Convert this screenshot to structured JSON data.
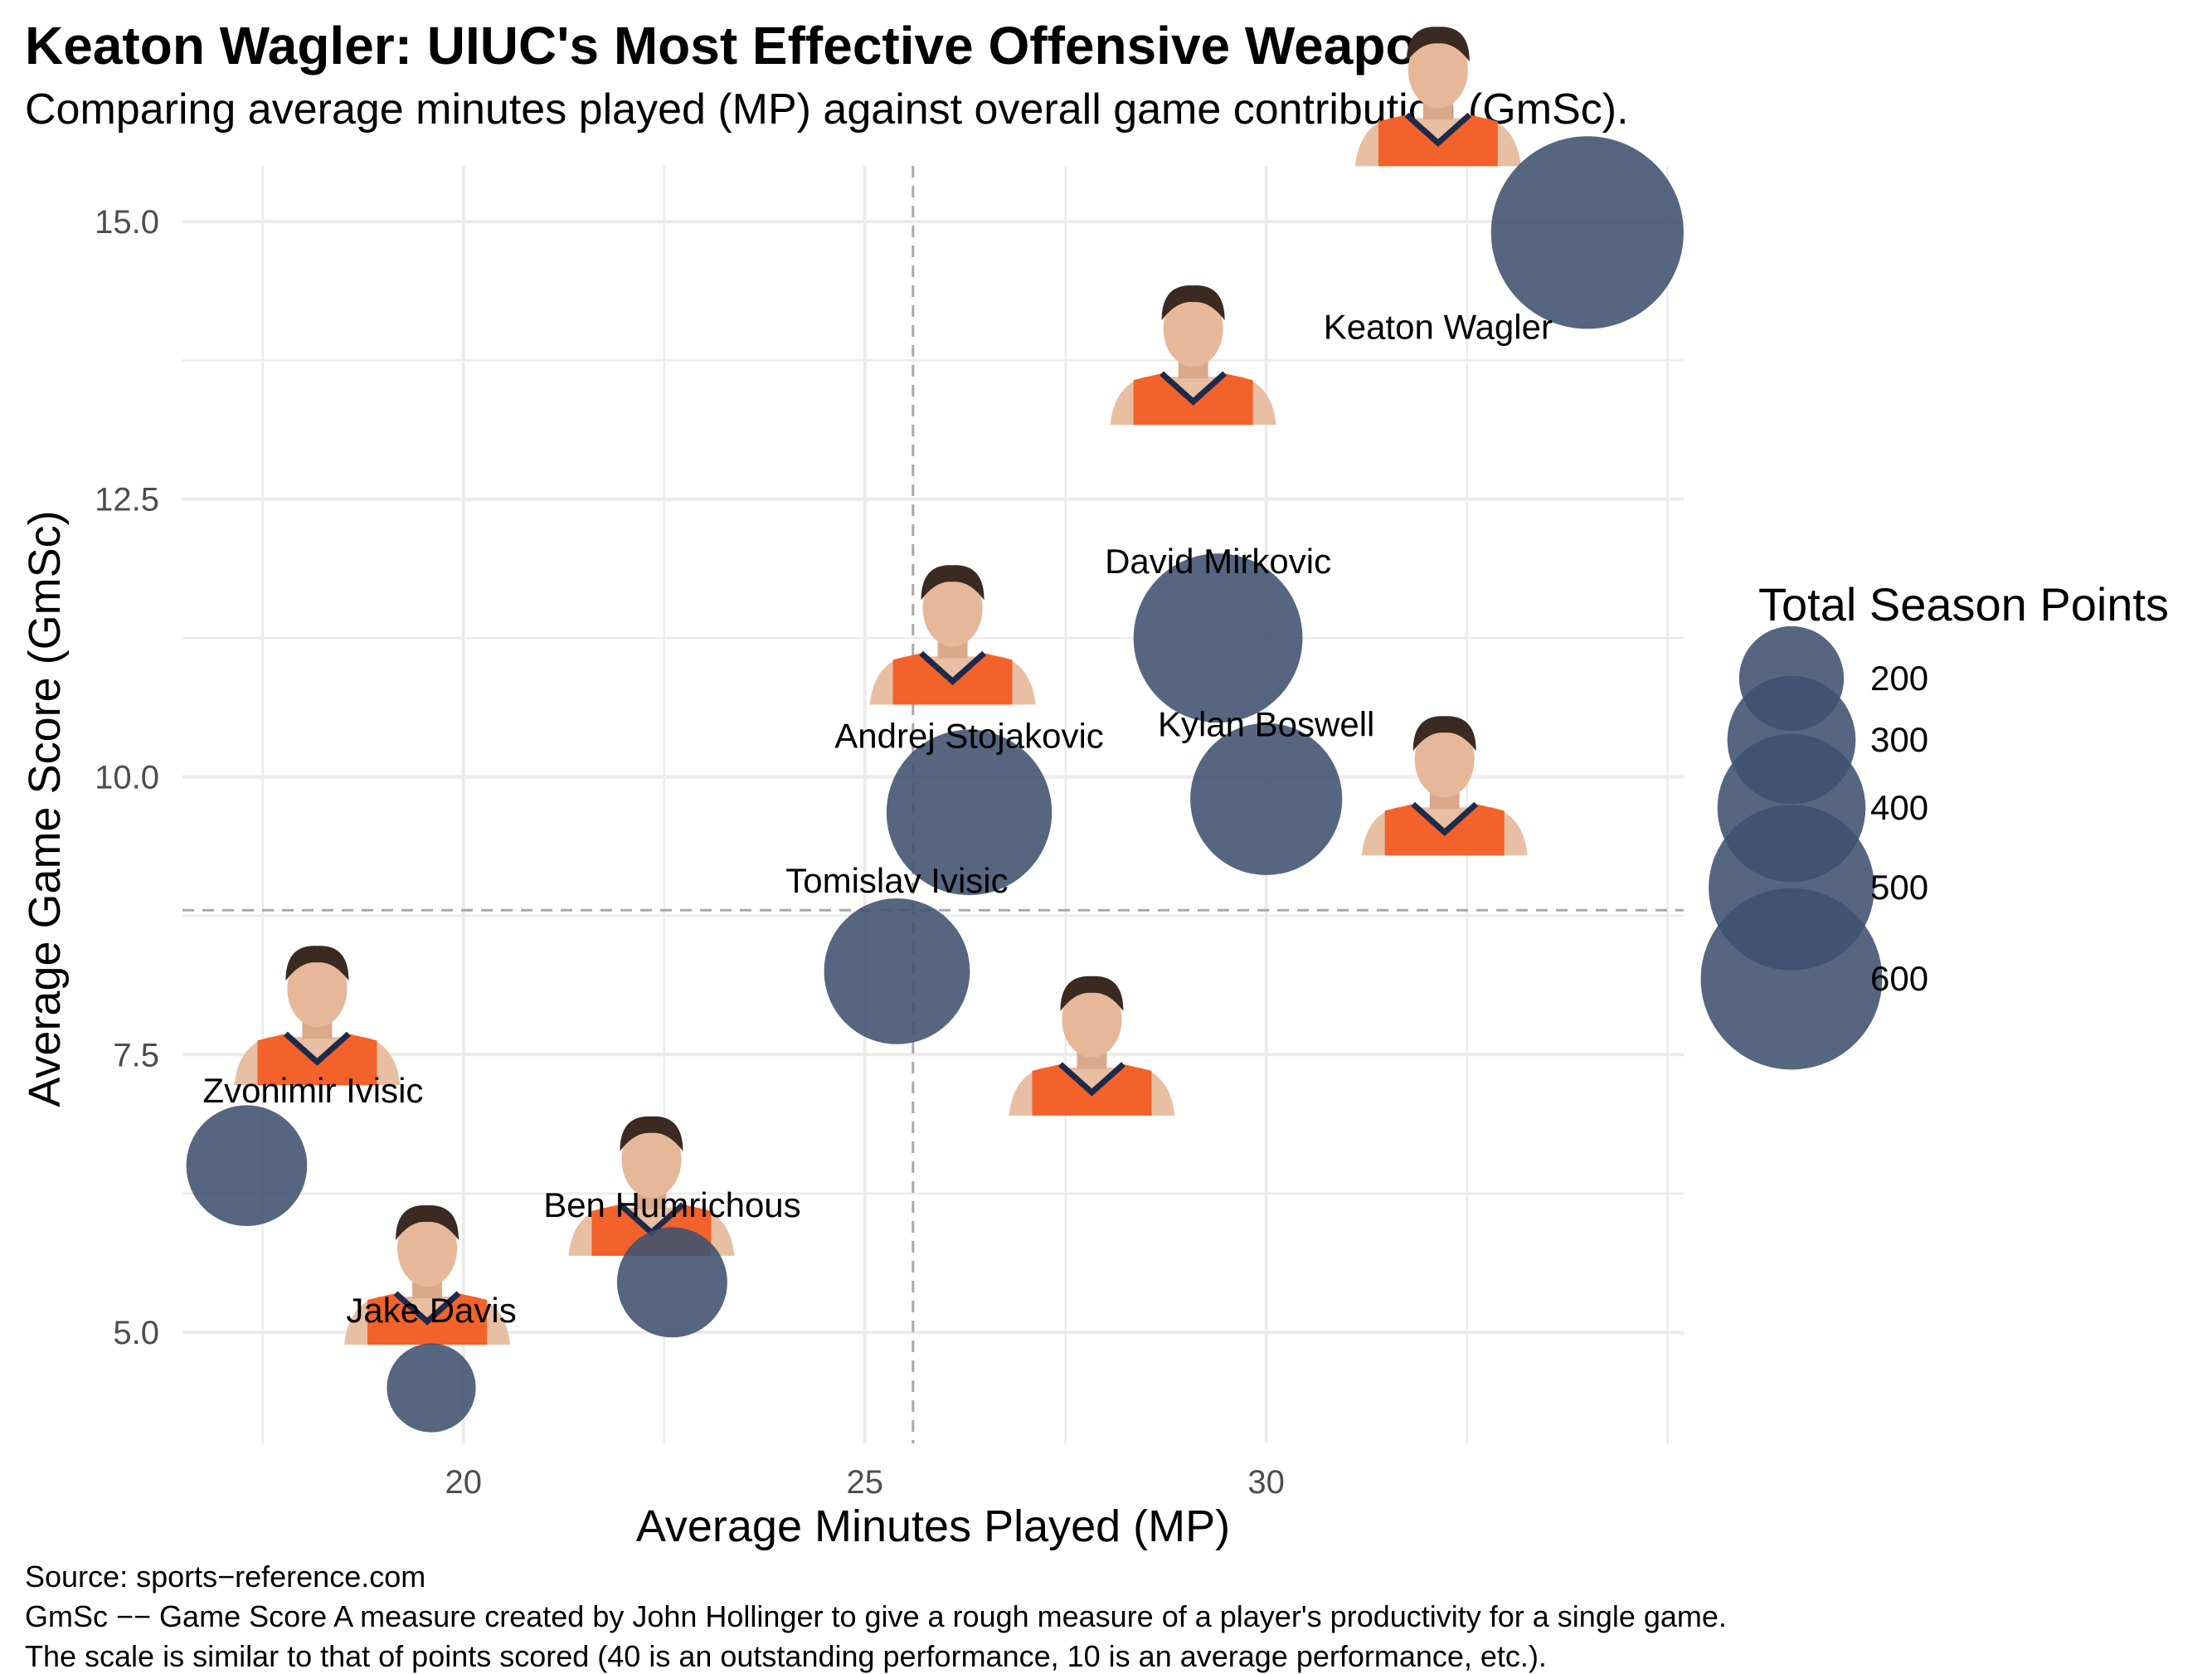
{
  "title": "Keaton Wagler: UIUC's Most Effective Offensive Weapon",
  "subtitle": "Comparing average minutes played (MP) against overall game contribution (GmSc).",
  "caption": [
    "Source: sports−reference.com",
    "GmSc −− Game Score A measure created by John Hollinger to give a rough measure of a player's productivity for a single game.",
    "The scale is similar to that of points scored (40 is an outstanding performance, 10 is an average performance, etc.)."
  ],
  "colors": {
    "point": "#3f5170",
    "jersey": "#f2622a",
    "jersey_trim": "#1e2a4a",
    "grid": "#ebebeb",
    "ref_line": "#a8a8a8",
    "tick_text": "#4d4d4d"
  },
  "chart_data": {
    "type": "scatter",
    "xlabel": "Average Minutes Played (MP)",
    "ylabel": "Average Game Score (GmSc)",
    "xlim": [
      16.5,
      35.2
    ],
    "ylim": [
      4.0,
      15.5
    ],
    "x_ticks": [
      20,
      25,
      30
    ],
    "x_tick_labels": [
      "20",
      "25",
      "30"
    ],
    "y_ticks": [
      5.0,
      7.5,
      10.0,
      12.5,
      15.0
    ],
    "y_tick_labels": [
      "5.0",
      "7.5",
      "10.0",
      "12.5",
      "15.0"
    ],
    "grid": true,
    "reference_lines": {
      "x_mean": 25.6,
      "y_mean": 8.8,
      "style": "dashed"
    },
    "size_legend": {
      "title": "Total Season Points",
      "values": [
        200,
        300,
        400,
        500,
        600
      ],
      "labels": [
        "200",
        "300",
        "400",
        "500",
        "600"
      ],
      "position": "right"
    },
    "points": [
      {
        "name": "Keaton Wagler",
        "mp": 34.0,
        "gmsc": 14.9,
        "pts": 610
      },
      {
        "name": "David Mirkovic",
        "mp": 29.4,
        "gmsc": 11.25,
        "pts": 470
      },
      {
        "name": "Kylan Boswell",
        "mp": 30.0,
        "gmsc": 9.8,
        "pts": 380
      },
      {
        "name": "Andrej Stojakovic",
        "mp": 26.3,
        "gmsc": 9.68,
        "pts": 450
      },
      {
        "name": "Tomislav Ivisic",
        "mp": 25.4,
        "gmsc": 8.25,
        "pts": 350
      },
      {
        "name": "Zvonimir Ivisic",
        "mp": 17.3,
        "gmsc": 6.5,
        "pts": 240
      },
      {
        "name": "Ben Humrichous",
        "mp": 22.6,
        "gmsc": 5.45,
        "pts": 200
      },
      {
        "name": "Jake Davis",
        "mp": 19.6,
        "gmsc": 4.5,
        "pts": 130
      }
    ]
  }
}
